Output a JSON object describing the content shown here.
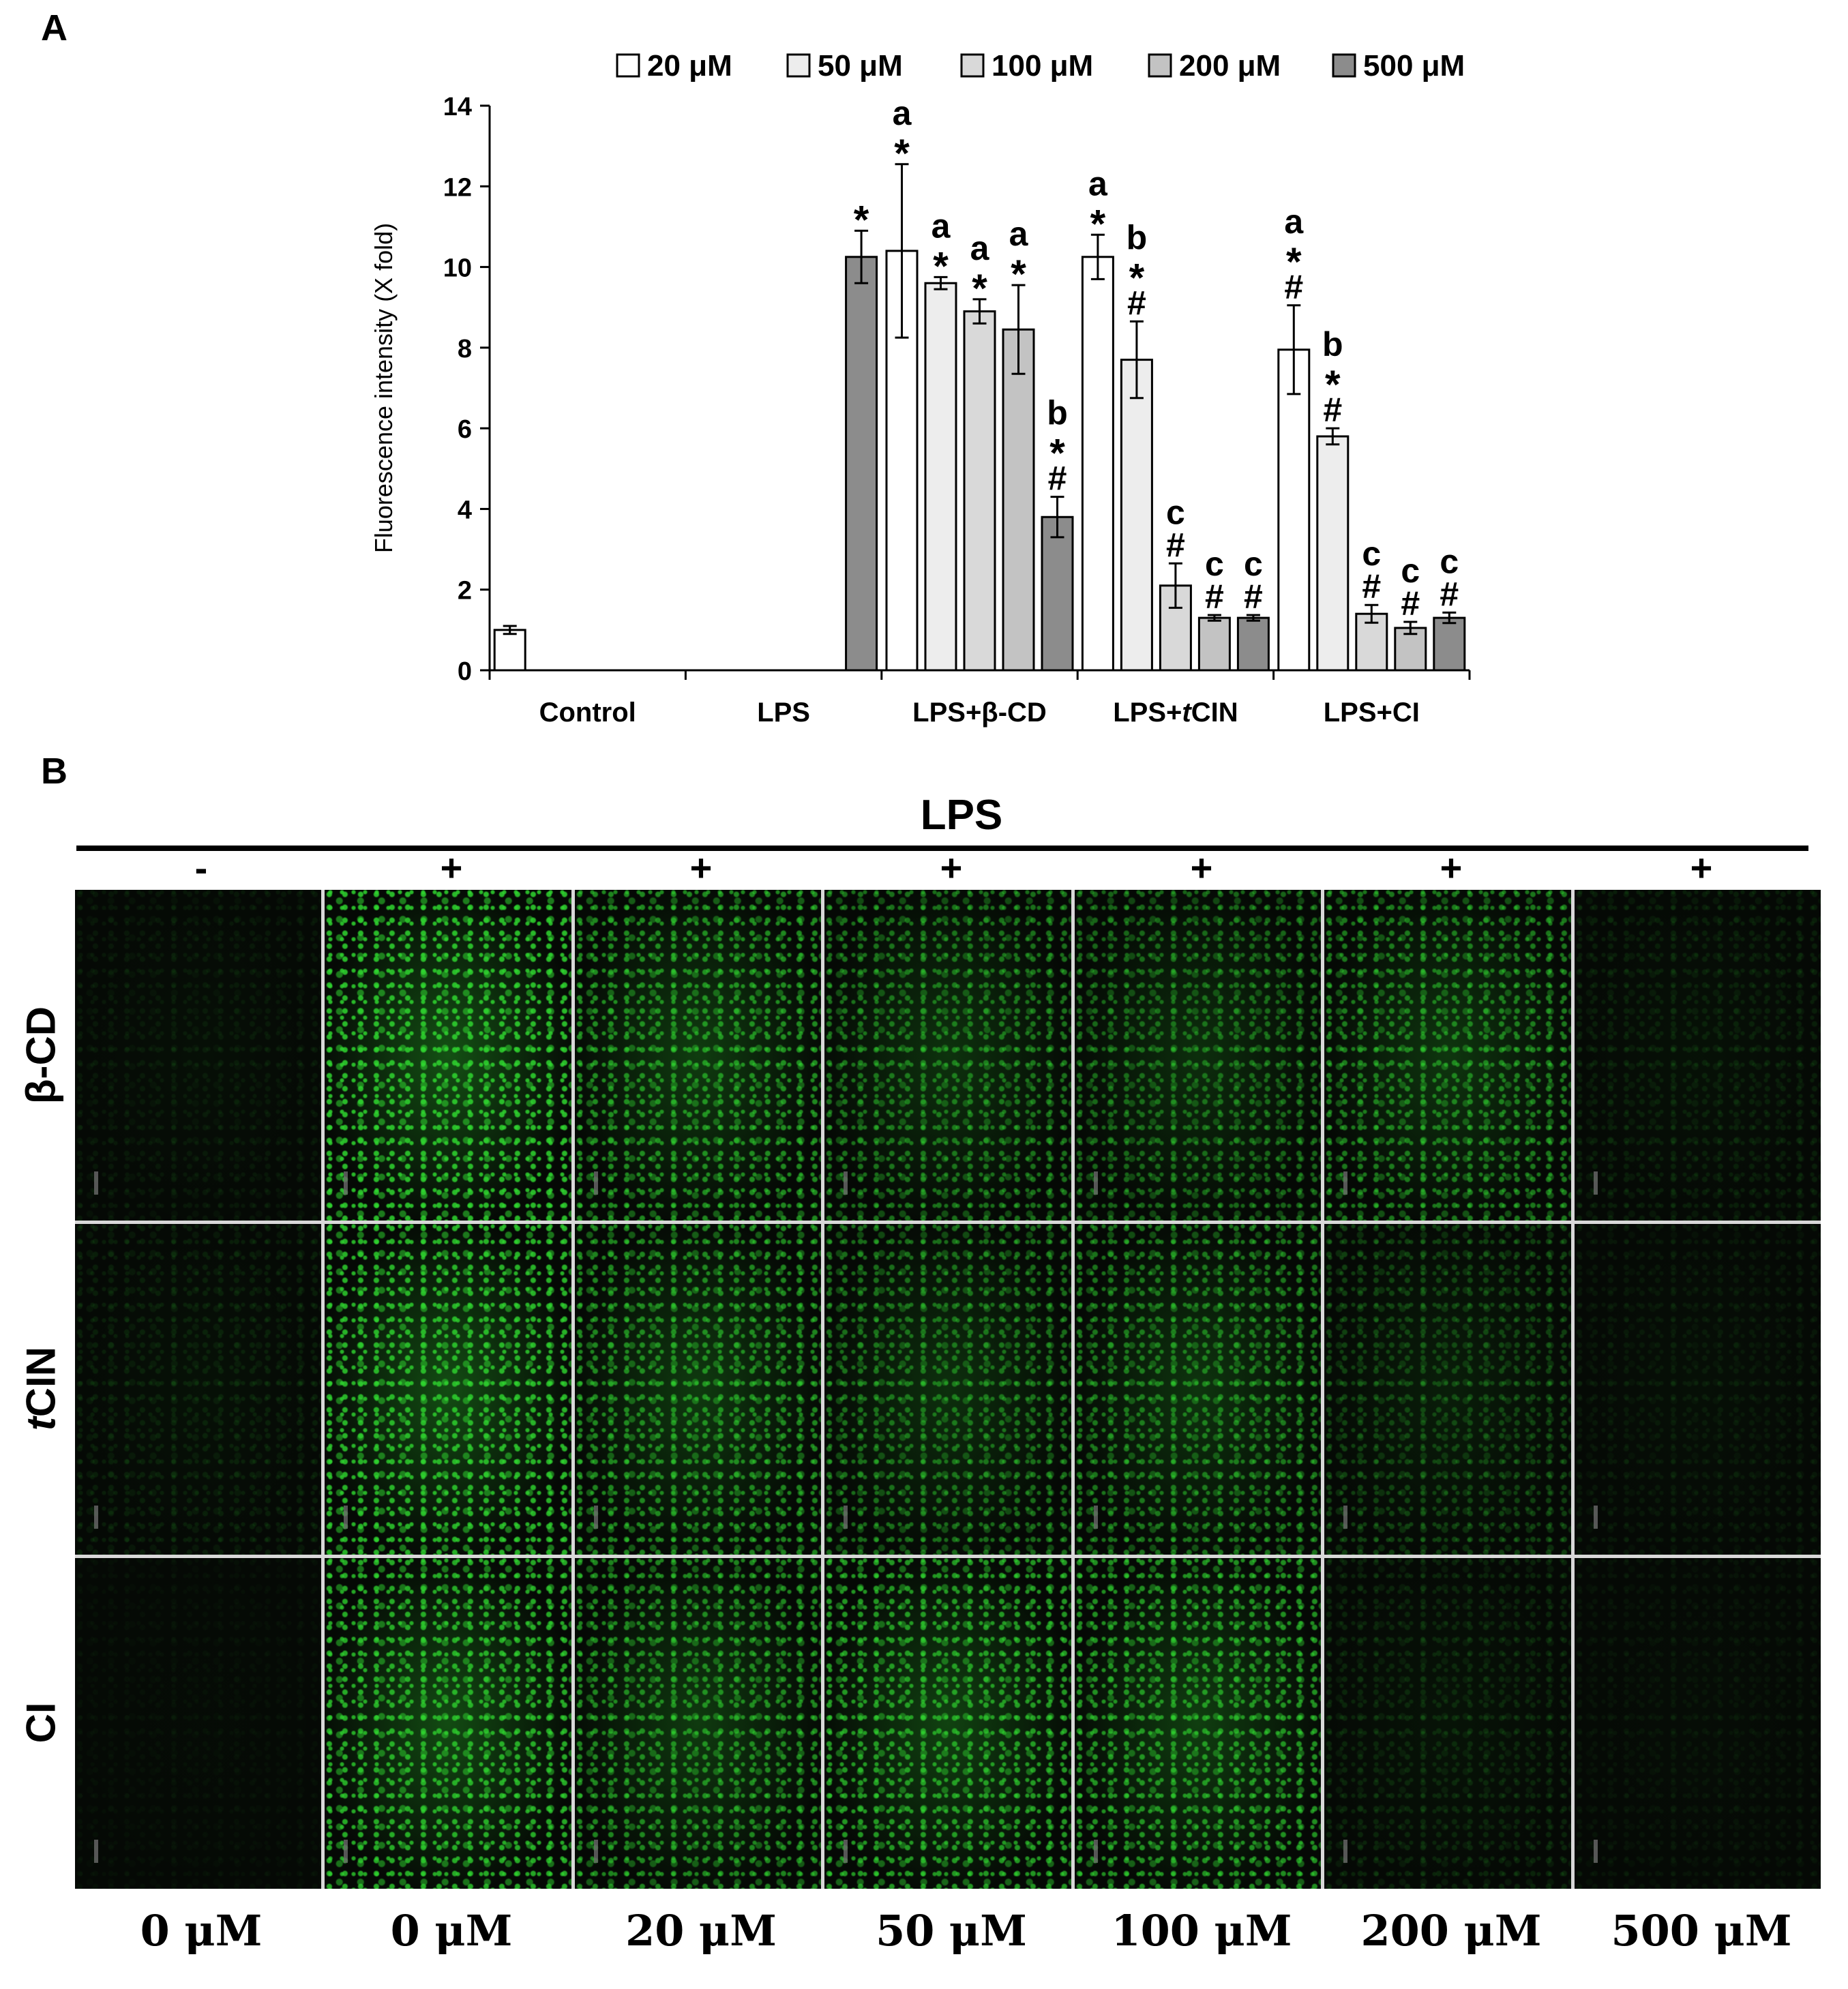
{
  "panel_a_label": "A",
  "panel_b_label": "B",
  "chart_data": {
    "type": "bar",
    "ylabel": "Fluorescence intensity (X fold)",
    "ylim": [
      0,
      14
    ],
    "yticks": [
      0,
      2,
      4,
      6,
      8,
      10,
      12,
      14
    ],
    "grid": false,
    "legend_position": "top",
    "categories": [
      "Control",
      "LPS",
      "LPS+β-CD",
      "LPS+tCIN",
      "LPS+CI"
    ],
    "category_labels": [
      {
        "pre": "Control",
        "italic": "",
        "post": ""
      },
      {
        "pre": "LPS",
        "italic": "",
        "post": ""
      },
      {
        "pre": "LPS+β-CD",
        "italic": "",
        "post": ""
      },
      {
        "pre": "LPS+",
        "italic": "t",
        "post": "CIN"
      },
      {
        "pre": "LPS+CI",
        "italic": "",
        "post": ""
      }
    ],
    "series": [
      {
        "name": "20 μM",
        "color": "#ffffff"
      },
      {
        "name": "50 μM",
        "color": "#ededed"
      },
      {
        "name": "100 μM",
        "color": "#d9d9d9"
      },
      {
        "name": "200 μM",
        "color": "#c3c3c3"
      },
      {
        "name": "500 μM",
        "color": "#8c8c8c"
      }
    ],
    "bars": [
      {
        "category": "Control",
        "slot": 0,
        "value": 1.0,
        "error": 0.1,
        "color": "#ffffff",
        "annotation": []
      },
      {
        "category": "LPS",
        "slot": 4,
        "value": 10.25,
        "error": 0.65,
        "color": "#8c8c8c",
        "annotation": [
          "*"
        ]
      },
      {
        "category": "LPS+β-CD",
        "slot": 0,
        "series": "20 μM",
        "value": 10.4,
        "error": 2.15,
        "annotation": [
          "a",
          "*"
        ]
      },
      {
        "category": "LPS+β-CD",
        "slot": 1,
        "series": "50 μM",
        "value": 9.6,
        "error": 0.15,
        "annotation": [
          "a",
          "*"
        ]
      },
      {
        "category": "LPS+β-CD",
        "slot": 2,
        "series": "100 μM",
        "value": 8.9,
        "error": 0.3,
        "annotation": [
          "a",
          "*"
        ]
      },
      {
        "category": "LPS+β-CD",
        "slot": 3,
        "series": "200 μM",
        "value": 8.45,
        "error": 1.1,
        "annotation": [
          "a",
          "*"
        ]
      },
      {
        "category": "LPS+β-CD",
        "slot": 4,
        "series": "500 μM",
        "value": 3.8,
        "error": 0.5,
        "annotation": [
          "b",
          "*",
          "#"
        ]
      },
      {
        "category": "LPS+tCIN",
        "slot": 0,
        "series": "20 μM",
        "value": 10.25,
        "error": 0.55,
        "annotation": [
          "a",
          "*"
        ]
      },
      {
        "category": "LPS+tCIN",
        "slot": 1,
        "series": "50 μM",
        "value": 7.7,
        "error": 0.95,
        "annotation": [
          "b",
          "*",
          "#"
        ]
      },
      {
        "category": "LPS+tCIN",
        "slot": 2,
        "series": "100 μM",
        "value": 2.1,
        "error": 0.55,
        "annotation": [
          "c",
          "#"
        ]
      },
      {
        "category": "LPS+tCIN",
        "slot": 3,
        "series": "200 μM",
        "value": 1.3,
        "error": 0.07,
        "annotation": [
          "c",
          "#"
        ]
      },
      {
        "category": "LPS+tCIN",
        "slot": 4,
        "series": "500 μM",
        "value": 1.3,
        "error": 0.07,
        "annotation": [
          "c",
          "#"
        ]
      },
      {
        "category": "LPS+CI",
        "slot": 0,
        "series": "20 μM",
        "value": 7.95,
        "error": 1.1,
        "annotation": [
          "a",
          "*",
          "#"
        ]
      },
      {
        "category": "LPS+CI",
        "slot": 1,
        "series": "50 μM",
        "value": 5.8,
        "error": 0.2,
        "annotation": [
          "b",
          "*",
          "#"
        ]
      },
      {
        "category": "LPS+CI",
        "slot": 2,
        "series": "100 μM",
        "value": 1.4,
        "error": 0.22,
        "annotation": [
          "c",
          "#"
        ]
      },
      {
        "category": "LPS+CI",
        "slot": 3,
        "series": "200 μM",
        "value": 1.05,
        "error": 0.15,
        "annotation": [
          "c",
          "#"
        ]
      },
      {
        "category": "LPS+CI",
        "slot": 4,
        "series": "500 μM",
        "value": 1.3,
        "error": 0.13,
        "annotation": [
          "c",
          "#"
        ]
      }
    ]
  },
  "panel_b": {
    "header": "LPS",
    "lps_signs": [
      "-",
      "+",
      "+",
      "+",
      "+",
      "+",
      "+"
    ],
    "row_labels": [
      {
        "pre": "",
        "italic": "",
        "post": "β-CD"
      },
      {
        "pre": "",
        "italic": "t",
        "post": "CIN"
      },
      {
        "pre": "",
        "italic": "",
        "post": "CI"
      }
    ],
    "concentrations": [
      "0 μM",
      "0 μM",
      "20 μM",
      "50 μM",
      "100 μM",
      "200 μM",
      "500 μM"
    ],
    "fluorescence_color": "#2fd62f",
    "intensity_levels": [
      [
        0.08,
        1.0,
        0.72,
        0.58,
        0.52,
        0.62,
        0.12
      ],
      [
        0.12,
        0.95,
        0.7,
        0.55,
        0.6,
        0.3,
        0.08
      ],
      [
        0.03,
        0.9,
        0.7,
        0.8,
        0.75,
        0.15,
        0.06
      ]
    ]
  }
}
